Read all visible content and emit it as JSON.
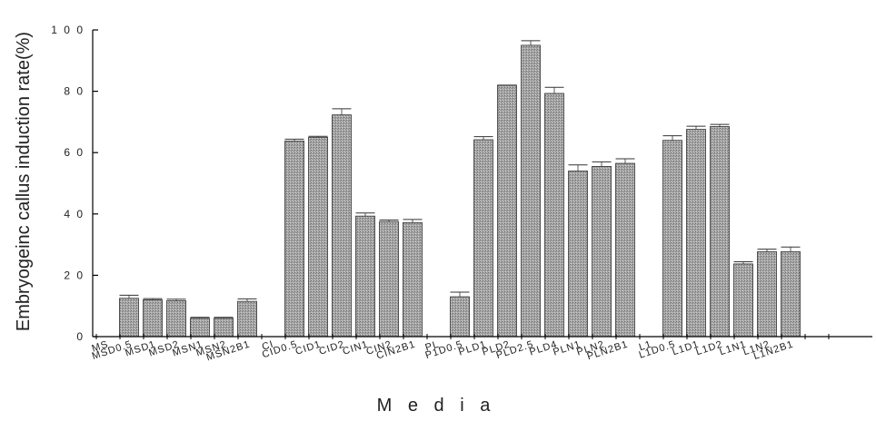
{
  "chart_data": {
    "type": "bar",
    "title": "",
    "xlabel": "M e d i a",
    "ylabel": "Embryogeinc callus induction rate(%)",
    "ylim": [
      0,
      100
    ],
    "yticks": [
      0,
      20,
      40,
      60,
      80,
      100
    ],
    "ytick_labels": [
      "0",
      "2 0",
      "4 0",
      "6 0",
      "8 0",
      "1 0 0"
    ],
    "grid": false,
    "legend": "none",
    "bar_color": "#a8a8a8",
    "categories": [
      "MS",
      "MSD0.5",
      "MSD1",
      "MSD2",
      "MSN1",
      "MSN2",
      "MSN2B1",
      "CI",
      "CID0.5",
      "CID1",
      "CID2",
      "CIN1",
      "CIN2",
      "CIN2B1",
      "PL",
      "P1D0.5",
      "PLD1",
      "PLD2",
      "PLD2.5",
      "PLD4",
      "PLN1",
      "PLN2",
      "PLN2B1",
      "L1",
      "L1D0.5",
      "L1D1",
      "L1D2",
      "L1N1",
      "L1N2",
      "L1N2B1"
    ],
    "values": [
      0,
      12.5,
      12,
      11.7,
      6,
      6,
      11.5,
      0,
      63.8,
      65,
      72.3,
      39.3,
      37.5,
      37.2,
      0,
      13,
      64.2,
      82,
      95,
      79.3,
      54,
      55.5,
      56.5,
      0,
      64,
      67.6,
      68.5,
      23.7,
      27.7,
      27.7
    ],
    "errors": [
      0,
      1.0,
      0.4,
      0.5,
      0.3,
      0.3,
      0.8,
      0,
      0.6,
      0.3,
      2.0,
      1.0,
      0.5,
      1.0,
      0,
      1.5,
      1.0,
      0,
      1.5,
      2.0,
      2.0,
      1.5,
      1.5,
      0,
      1.5,
      1.0,
      0.7,
      0.7,
      0.8,
      1.5
    ]
  }
}
